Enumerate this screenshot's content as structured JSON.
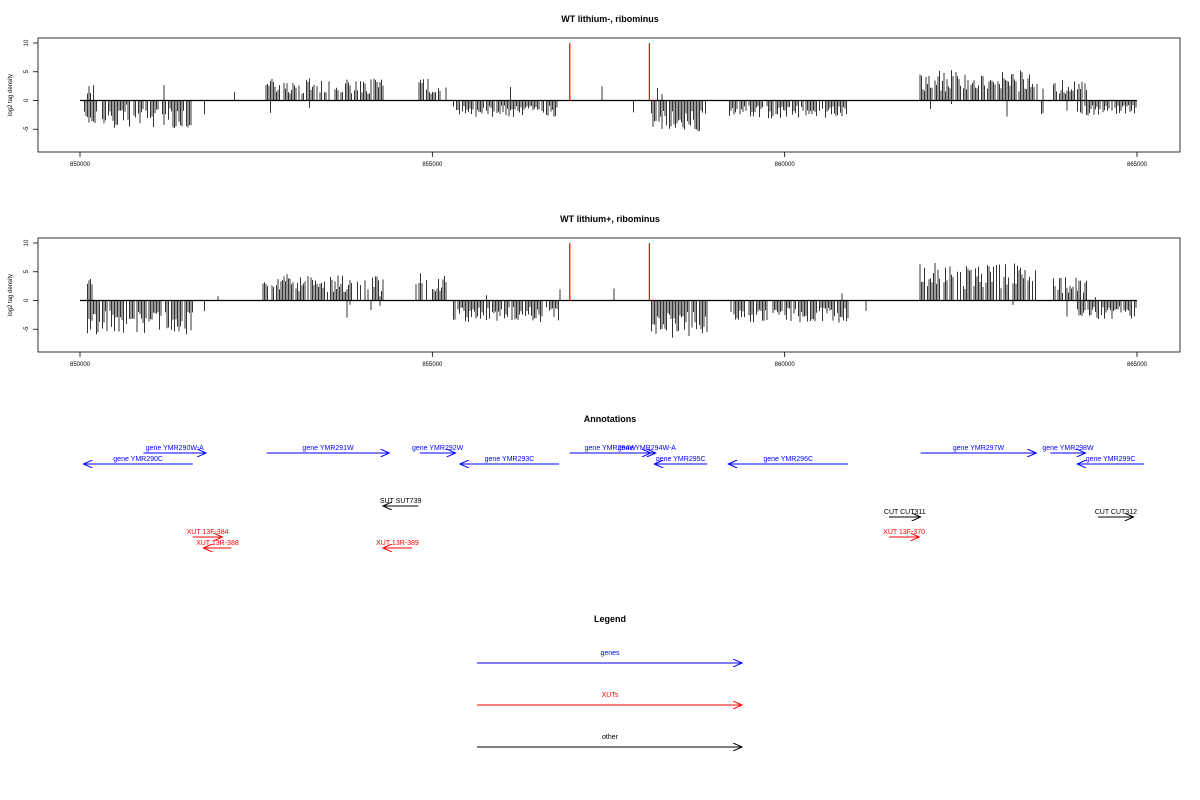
{
  "colors": {
    "bars": "#000000",
    "highlight": "#ff0000",
    "genes": "#0000ff",
    "xuts": "#ff0000",
    "other": "#000000"
  },
  "chart_data": [
    {
      "type": "bar",
      "title": "WT lithium-, ribominus",
      "ylabel": "log2 tag density",
      "xlim": [
        850000,
        865000
      ],
      "ylim": [
        -8,
        10
      ],
      "x_ticks": [
        "850000",
        "855000",
        "860000",
        "865000"
      ],
      "y_ticks": [
        "10",
        "5",
        "0",
        "-5"
      ],
      "highlight_x": [
        856950,
        858080
      ],
      "seed": 17
    },
    {
      "type": "bar",
      "title": "WT lithium+, ribominus",
      "ylabel": "log2 tag density",
      "xlim": [
        850000,
        865000
      ],
      "ylim": [
        -8,
        10
      ],
      "x_ticks": [
        "850000",
        "855000",
        "860000",
        "865000"
      ],
      "y_ticks": [
        "10",
        "5",
        "0",
        "-5"
      ],
      "highlight_x": [
        856950,
        858080
      ],
      "seed": 91
    }
  ],
  "annotations": {
    "title": "Annotations",
    "items": [
      {
        "label": "gene YMR290C",
        "type": "gene",
        "start": 850050,
        "end": 851600,
        "dir": "left",
        "row": 1
      },
      {
        "label": "gene YMR290W-A",
        "type": "gene",
        "start": 850900,
        "end": 851790,
        "dir": "right",
        "row": 0
      },
      {
        "label": "gene YMR291W",
        "type": "gene",
        "start": 852650,
        "end": 854390,
        "dir": "right",
        "row": 0
      },
      {
        "label": "gene YMR292W",
        "type": "gene",
        "start": 854820,
        "end": 855330,
        "dir": "right",
        "row": 0
      },
      {
        "label": "gene YMR293C",
        "type": "gene",
        "start": 855390,
        "end": 856800,
        "dir": "left",
        "row": 1
      },
      {
        "label": "gene YMR294W",
        "type": "gene",
        "start": 856950,
        "end": 858100,
        "dir": "right",
        "row": 0
      },
      {
        "label": "gene YMR294W-A",
        "type": "gene",
        "start": 857920,
        "end": 858170,
        "dir": "right",
        "row": 0
      },
      {
        "label": "gene YMR295C",
        "type": "gene",
        "start": 858150,
        "end": 858900,
        "dir": "left",
        "row": 1
      },
      {
        "label": "gene YMR296C",
        "type": "gene",
        "start": 859200,
        "end": 860900,
        "dir": "left",
        "row": 1
      },
      {
        "label": "gene YMR297W",
        "type": "gene",
        "start": 861930,
        "end": 863570,
        "dir": "right",
        "row": 0
      },
      {
        "label": "gene YMR298W",
        "type": "gene",
        "start": 863770,
        "end": 864270,
        "dir": "right",
        "row": 0
      },
      {
        "label": "gene YMR299C",
        "type": "gene",
        "start": 864150,
        "end": 865100,
        "dir": "left",
        "row": 1
      },
      {
        "label": "SUT SUT739",
        "type": "other",
        "start": 854300,
        "end": 854800,
        "dir": "left",
        "row": 2
      },
      {
        "label": "CUT CUT311",
        "type": "other",
        "start": 861480,
        "end": 861930,
        "dir": "right",
        "row": 3
      },
      {
        "label": "CUT CUT312",
        "type": "other",
        "start": 864450,
        "end": 864950,
        "dir": "right",
        "row": 3
      },
      {
        "label": "XUT 13F-384",
        "type": "xut",
        "start": 851600,
        "end": 852020,
        "dir": "right",
        "row": 4
      },
      {
        "label": "XUT 13R-388",
        "type": "xut",
        "start": 851750,
        "end": 852150,
        "dir": "left",
        "row": 5
      },
      {
        "label": "XUT 13R-389",
        "type": "xut",
        "start": 854300,
        "end": 854710,
        "dir": "left",
        "row": 5
      },
      {
        "label": "XUT 13F-370",
        "type": "xut",
        "start": 861480,
        "end": 861910,
        "dir": "right",
        "row": 4
      }
    ]
  },
  "legend": {
    "title": "Legend",
    "items": [
      {
        "label": "genes",
        "type": "gene"
      },
      {
        "label": "XUTs",
        "type": "xut"
      },
      {
        "label": "other",
        "type": "other"
      }
    ]
  }
}
